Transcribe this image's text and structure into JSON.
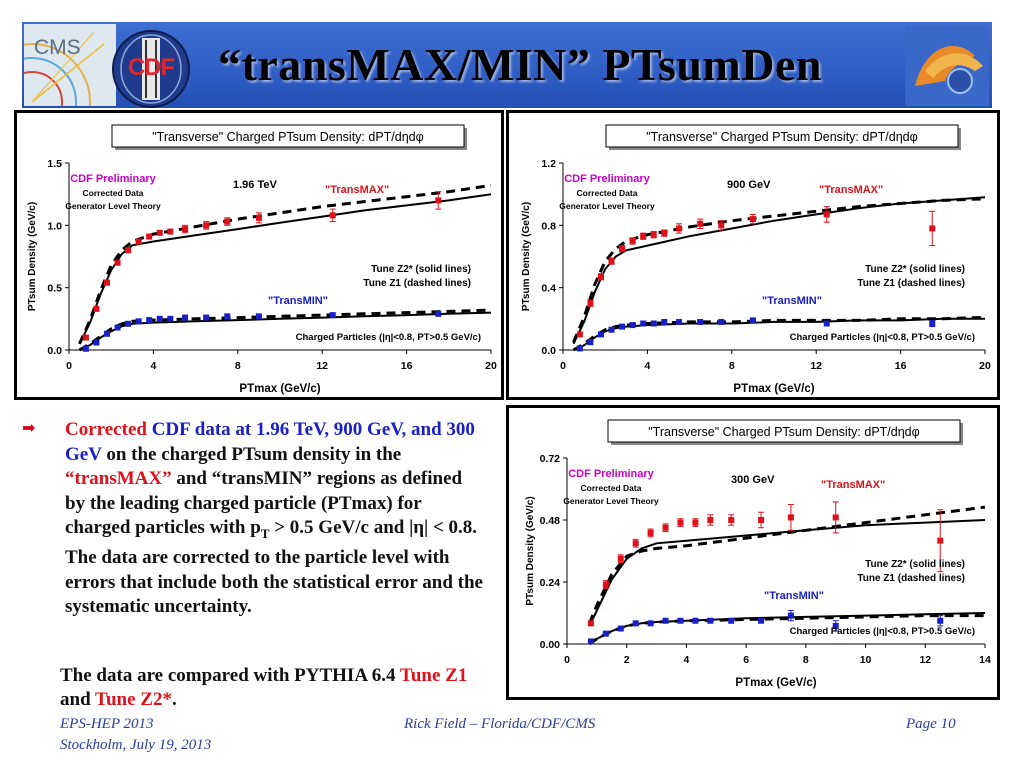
{
  "slide": {
    "title": "“transMAX/MIN” PTsumDen",
    "logo_cms_text": "CMS",
    "logo_cdf_text": "CDF",
    "bullet_parts": [
      {
        "text": "Corrected ",
        "style": "red"
      },
      {
        "text": "CDF data at 1.96 TeV, 900 GeV, and 300 GeV",
        "style": "blue"
      },
      {
        "text": " on the charged PTsum density in the ",
        "style": "plain"
      },
      {
        "text": "“transMAX”",
        "style": "red"
      },
      {
        "text": " and “transMIN” regions as defined by the leading charged particle (PTmax) for charged particles with p",
        "style": "plain"
      },
      {
        "text": "T",
        "style": "sub"
      },
      {
        "text": " > 0.5 GeV/c and |η| < 0.8. The data are corrected to the particle level with errors that include both the statistical error and the systematic uncertainty.",
        "style": "plain"
      }
    ],
    "compare_parts": [
      {
        "text": "The data are compared with PYTHIA 6.4 ",
        "style": "plain"
      },
      {
        "text": "Tune Z1",
        "style": "red"
      },
      {
        "text": " and ",
        "style": "plain"
      },
      {
        "text": "Tune Z2*",
        "style": "red"
      },
      {
        "text": ".",
        "style": "plain"
      }
    ],
    "footer_left_1": "EPS-HEP 2013",
    "footer_left_2": "Stockholm, July 19, 2013",
    "footer_center": "Rick Field – Florida/CDF/CMS",
    "footer_right": "Page 10"
  },
  "colors": {
    "banner": "#2f5dc4",
    "data_max": "#e0101a",
    "data_min": "#1a20c8",
    "prelim": "#cc00cc",
    "text_red": "#e0101a",
    "text_blue": "#1a20c8",
    "footer": "#2a3c9c"
  },
  "chart_data": [
    {
      "type": "scatter",
      "title": "\"Transverse\" Charged PTsum Density: dPT/dηdφ",
      "xlabel": "PTmax  (GeV/c)",
      "ylabel": "PTsum Density (GeV/c)",
      "xlim": [
        0,
        20
      ],
      "ylim": [
        0.0,
        1.5
      ],
      "xticks": [
        0,
        4,
        8,
        12,
        16,
        20
      ],
      "yticks": [
        0.0,
        0.5,
        1.0,
        1.5
      ],
      "ytick_labels": [
        "0.0",
        "0.5",
        "1.0",
        "1.5"
      ],
      "grid": false,
      "annotations": {
        "prelim": "CDF Preliminary",
        "corrected": "Corrected Data",
        "generator": "Generator Level Theory",
        "energy": "1.96 TeV",
        "transmax": "\"TransMAX\"",
        "transmin": "\"TransMIN\"",
        "tune_z2": "Tune Z2* (solid lines)",
        "tune_z1": "Tune Z1 (dashed lines)",
        "selection": "Charged Particles (|η|<0.8, PT>0.5 GeV/c)"
      },
      "series": [
        {
          "name": "\"TransMAX\"",
          "kind": "data",
          "x": [
            0.8,
            1.3,
            1.8,
            2.3,
            2.8,
            3.3,
            3.8,
            4.3,
            4.8,
            5.5,
            6.5,
            7.5,
            9.0,
            12.5,
            17.5
          ],
          "y": [
            0.1,
            0.33,
            0.54,
            0.7,
            0.8,
            0.87,
            0.91,
            0.94,
            0.95,
            0.97,
            1.0,
            1.03,
            1.06,
            1.08,
            1.2
          ],
          "err": [
            0.01,
            0.02,
            0.02,
            0.02,
            0.02,
            0.02,
            0.02,
            0.02,
            0.02,
            0.03,
            0.03,
            0.03,
            0.04,
            0.05,
            0.07
          ]
        },
        {
          "name": "\"TransMIN\"",
          "kind": "data",
          "x": [
            0.8,
            1.3,
            1.8,
            2.3,
            2.8,
            3.3,
            3.8,
            4.3,
            4.8,
            5.5,
            6.5,
            7.5,
            9.0,
            12.5,
            17.5
          ],
          "y": [
            0.01,
            0.06,
            0.13,
            0.18,
            0.21,
            0.23,
            0.24,
            0.25,
            0.25,
            0.26,
            0.26,
            0.27,
            0.27,
            0.28,
            0.29
          ],
          "err": [
            0.005,
            0.005,
            0.005,
            0.005,
            0.005,
            0.005,
            0.005,
            0.005,
            0.005,
            0.005,
            0.005,
            0.005,
            0.01,
            0.01,
            0.02
          ]
        },
        {
          "name": "Tune Z2* transMAX",
          "kind": "solid",
          "x": [
            0.5,
            1.0,
            1.5,
            2.0,
            2.5,
            3.0,
            4.0,
            6.0,
            8.0,
            10.0,
            12.0,
            14.0,
            16.0,
            18.0,
            20.0
          ],
          "y": [
            0.05,
            0.22,
            0.45,
            0.64,
            0.77,
            0.84,
            0.87,
            0.92,
            0.97,
            1.02,
            1.07,
            1.12,
            1.16,
            1.2,
            1.25
          ]
        },
        {
          "name": "Tune Z1 transMAX",
          "kind": "dashed",
          "x": [
            0.5,
            1.0,
            1.5,
            2.0,
            2.5,
            3.0,
            4.0,
            6.0,
            8.0,
            10.0,
            12.0,
            14.0,
            16.0,
            18.0,
            20.0
          ],
          "y": [
            0.05,
            0.24,
            0.48,
            0.68,
            0.8,
            0.87,
            0.93,
            0.99,
            1.05,
            1.1,
            1.15,
            1.19,
            1.23,
            1.27,
            1.32
          ]
        },
        {
          "name": "Tune Z2* transMIN",
          "kind": "solid",
          "x": [
            0.5,
            1.0,
            1.5,
            2.0,
            2.5,
            3.0,
            4.0,
            6.0,
            8.0,
            10.0,
            12.0,
            14.0,
            16.0,
            18.0,
            20.0
          ],
          "y": [
            0.0,
            0.04,
            0.1,
            0.15,
            0.19,
            0.21,
            0.22,
            0.23,
            0.24,
            0.25,
            0.26,
            0.27,
            0.28,
            0.29,
            0.3
          ]
        },
        {
          "name": "Tune Z1 transMIN",
          "kind": "dashed",
          "x": [
            0.5,
            1.0,
            1.5,
            2.0,
            2.5,
            3.0,
            4.0,
            6.0,
            8.0,
            10.0,
            12.0,
            14.0,
            16.0,
            18.0,
            20.0
          ],
          "y": [
            0.0,
            0.05,
            0.11,
            0.17,
            0.21,
            0.23,
            0.24,
            0.25,
            0.26,
            0.27,
            0.28,
            0.29,
            0.3,
            0.31,
            0.32
          ]
        }
      ]
    },
    {
      "type": "scatter",
      "title": "\"Transverse\" Charged PTsum Density: dPT/dηdφ",
      "xlabel": "PTmax  (GeV/c)",
      "ylabel": "PTsum Density (GeV/c)",
      "xlim": [
        0,
        20
      ],
      "ylim": [
        0.0,
        1.2
      ],
      "xticks": [
        0,
        4,
        8,
        12,
        16,
        20
      ],
      "yticks": [
        0.0,
        0.4,
        0.8,
        1.2
      ],
      "ytick_labels": [
        "0.0",
        "0.4",
        "0.8",
        "1.2"
      ],
      "grid": false,
      "annotations": {
        "prelim": "CDF Preliminary",
        "corrected": "Corrected Data",
        "generator": "Generator Level Theory",
        "energy": "900 GeV",
        "transmax": "\"TransMAX\"",
        "transmin": "\"TransMIN\"",
        "tune_z2": "Tune Z2* (solid lines)",
        "tune_z1": "Tune Z1 (dashed lines)",
        "selection": "Charged Particles (|η|<0.8, PT>0.5 GeV/c)"
      },
      "series": [
        {
          "name": "\"TransMAX\"",
          "kind": "data",
          "x": [
            0.8,
            1.3,
            1.8,
            2.3,
            2.8,
            3.3,
            3.8,
            4.3,
            4.8,
            5.5,
            6.5,
            7.5,
            9.0,
            12.5,
            17.5
          ],
          "y": [
            0.1,
            0.3,
            0.47,
            0.57,
            0.65,
            0.7,
            0.73,
            0.74,
            0.75,
            0.78,
            0.81,
            0.8,
            0.84,
            0.87,
            0.78
          ],
          "err": [
            0.01,
            0.02,
            0.02,
            0.02,
            0.02,
            0.02,
            0.02,
            0.02,
            0.02,
            0.03,
            0.03,
            0.03,
            0.03,
            0.05,
            0.11
          ]
        },
        {
          "name": "\"TransMIN\"",
          "kind": "data",
          "x": [
            0.8,
            1.3,
            1.8,
            2.3,
            2.8,
            3.3,
            3.8,
            4.3,
            4.8,
            5.5,
            6.5,
            7.5,
            9.0,
            12.5,
            17.5
          ],
          "y": [
            0.01,
            0.05,
            0.1,
            0.13,
            0.15,
            0.16,
            0.17,
            0.17,
            0.18,
            0.18,
            0.18,
            0.18,
            0.19,
            0.17,
            0.17
          ],
          "err": [
            0.005,
            0.005,
            0.005,
            0.005,
            0.005,
            0.005,
            0.005,
            0.005,
            0.005,
            0.005,
            0.005,
            0.005,
            0.01,
            0.01,
            0.02
          ]
        },
        {
          "name": "Tune Z2* transMAX",
          "kind": "solid",
          "x": [
            0.5,
            1.0,
            1.5,
            2.0,
            2.5,
            3.0,
            4.0,
            6.0,
            8.0,
            10.0,
            12.0,
            14.0,
            16.0,
            18.0,
            20.0
          ],
          "y": [
            0.04,
            0.18,
            0.37,
            0.52,
            0.6,
            0.64,
            0.67,
            0.73,
            0.78,
            0.83,
            0.87,
            0.91,
            0.94,
            0.96,
            0.98
          ]
        },
        {
          "name": "Tune Z1 transMAX",
          "kind": "dashed",
          "x": [
            0.5,
            1.0,
            1.5,
            2.0,
            2.5,
            3.0,
            4.0,
            6.0,
            8.0,
            10.0,
            12.0,
            14.0,
            16.0,
            18.0,
            20.0
          ],
          "y": [
            0.05,
            0.21,
            0.42,
            0.57,
            0.65,
            0.7,
            0.74,
            0.79,
            0.83,
            0.86,
            0.89,
            0.92,
            0.94,
            0.96,
            0.97
          ]
        },
        {
          "name": "Tune Z2* transMIN",
          "kind": "solid",
          "x": [
            0.5,
            1.0,
            1.5,
            2.0,
            2.5,
            3.0,
            4.0,
            6.0,
            8.0,
            10.0,
            12.0,
            14.0,
            16.0,
            18.0,
            20.0
          ],
          "y": [
            0.0,
            0.03,
            0.08,
            0.12,
            0.14,
            0.15,
            0.16,
            0.17,
            0.17,
            0.18,
            0.18,
            0.19,
            0.19,
            0.2,
            0.2
          ]
        },
        {
          "name": "Tune Z1 transMIN",
          "kind": "dashed",
          "x": [
            0.5,
            1.0,
            1.5,
            2.0,
            2.5,
            3.0,
            4.0,
            6.0,
            8.0,
            10.0,
            12.0,
            14.0,
            16.0,
            18.0,
            20.0
          ],
          "y": [
            0.0,
            0.04,
            0.09,
            0.13,
            0.15,
            0.16,
            0.17,
            0.18,
            0.18,
            0.19,
            0.19,
            0.19,
            0.2,
            0.2,
            0.21
          ]
        }
      ]
    },
    {
      "type": "scatter",
      "title": "\"Transverse\" Charged PTsum Density: dPT/dηdφ",
      "xlabel": "PTmax  (GeV/c)",
      "ylabel": "PTsum Density (GeV/c)",
      "xlim": [
        0,
        14
      ],
      "ylim": [
        0.0,
        0.72
      ],
      "xticks": [
        0,
        2,
        4,
        6,
        8,
        10,
        12,
        14
      ],
      "yticks": [
        0.0,
        0.24,
        0.48,
        0.72
      ],
      "ytick_labels": [
        "0.00",
        "0.24",
        "0.48",
        "0.72"
      ],
      "grid": false,
      "annotations": {
        "prelim": "CDF Preliminary",
        "corrected": "Corrected Data",
        "generator": "Generator Level Theory",
        "energy": "300 GeV",
        "transmax": "\"TransMAX\"",
        "transmin": "\"TransMIN\"",
        "tune_z2": "Tune Z2* (solid lines)",
        "tune_z1": "Tune Z1 (dashed lines)",
        "selection": "Charged Particles (|η|<0.8, PT>0.5 GeV/c)"
      },
      "series": [
        {
          "name": "\"TransMAX\"",
          "kind": "data",
          "x": [
            0.8,
            1.3,
            1.8,
            2.3,
            2.8,
            3.3,
            3.8,
            4.3,
            4.8,
            5.5,
            6.5,
            7.5,
            9.0,
            12.5
          ],
          "y": [
            0.08,
            0.23,
            0.33,
            0.39,
            0.43,
            0.45,
            0.47,
            0.47,
            0.48,
            0.48,
            0.48,
            0.49,
            0.49,
            0.4
          ],
          "err": [
            0.01,
            0.015,
            0.015,
            0.015,
            0.015,
            0.015,
            0.015,
            0.015,
            0.02,
            0.02,
            0.03,
            0.05,
            0.06,
            0.12
          ]
        },
        {
          "name": "\"TransMIN\"",
          "kind": "data",
          "x": [
            0.8,
            1.3,
            1.8,
            2.3,
            2.8,
            3.3,
            3.8,
            4.3,
            4.8,
            5.5,
            6.5,
            7.5,
            9.0,
            12.5
          ],
          "y": [
            0.01,
            0.04,
            0.06,
            0.08,
            0.08,
            0.09,
            0.09,
            0.09,
            0.09,
            0.09,
            0.09,
            0.11,
            0.07,
            0.09
          ],
          "err": [
            0.005,
            0.005,
            0.005,
            0.005,
            0.005,
            0.005,
            0.005,
            0.005,
            0.005,
            0.01,
            0.01,
            0.02,
            0.02,
            0.02
          ]
        },
        {
          "name": "Tune Z2* transMAX",
          "kind": "solid",
          "x": [
            0.75,
            1.0,
            1.5,
            2.0,
            2.5,
            3.0,
            4.0,
            6.0,
            8.0,
            10.0,
            12.0,
            14.0
          ],
          "y": [
            0.07,
            0.13,
            0.25,
            0.33,
            0.37,
            0.39,
            0.4,
            0.42,
            0.44,
            0.46,
            0.47,
            0.48
          ]
        },
        {
          "name": "Tune Z1 transMAX",
          "kind": "dashed",
          "x": [
            0.75,
            1.0,
            1.5,
            2.0,
            2.5,
            3.0,
            4.0,
            6.0,
            8.0,
            10.0,
            12.0,
            14.0
          ],
          "y": [
            0.08,
            0.15,
            0.27,
            0.34,
            0.36,
            0.37,
            0.38,
            0.41,
            0.44,
            0.47,
            0.5,
            0.53
          ]
        },
        {
          "name": "Tune Z2* transMIN",
          "kind": "solid",
          "x": [
            0.75,
            1.0,
            1.5,
            2.0,
            2.5,
            3.0,
            4.0,
            6.0,
            8.0,
            10.0,
            12.0,
            14.0
          ],
          "y": [
            0.0,
            0.02,
            0.05,
            0.07,
            0.08,
            0.085,
            0.09,
            0.1,
            0.105,
            0.11,
            0.115,
            0.12
          ]
        },
        {
          "name": "Tune Z1 transMIN",
          "kind": "dashed",
          "x": [
            0.75,
            1.0,
            1.5,
            2.0,
            2.5,
            3.0,
            4.0,
            6.0,
            8.0,
            10.0,
            12.0,
            14.0
          ],
          "y": [
            0.0,
            0.02,
            0.05,
            0.07,
            0.08,
            0.085,
            0.09,
            0.095,
            0.1,
            0.105,
            0.11,
            0.11
          ]
        }
      ]
    }
  ]
}
